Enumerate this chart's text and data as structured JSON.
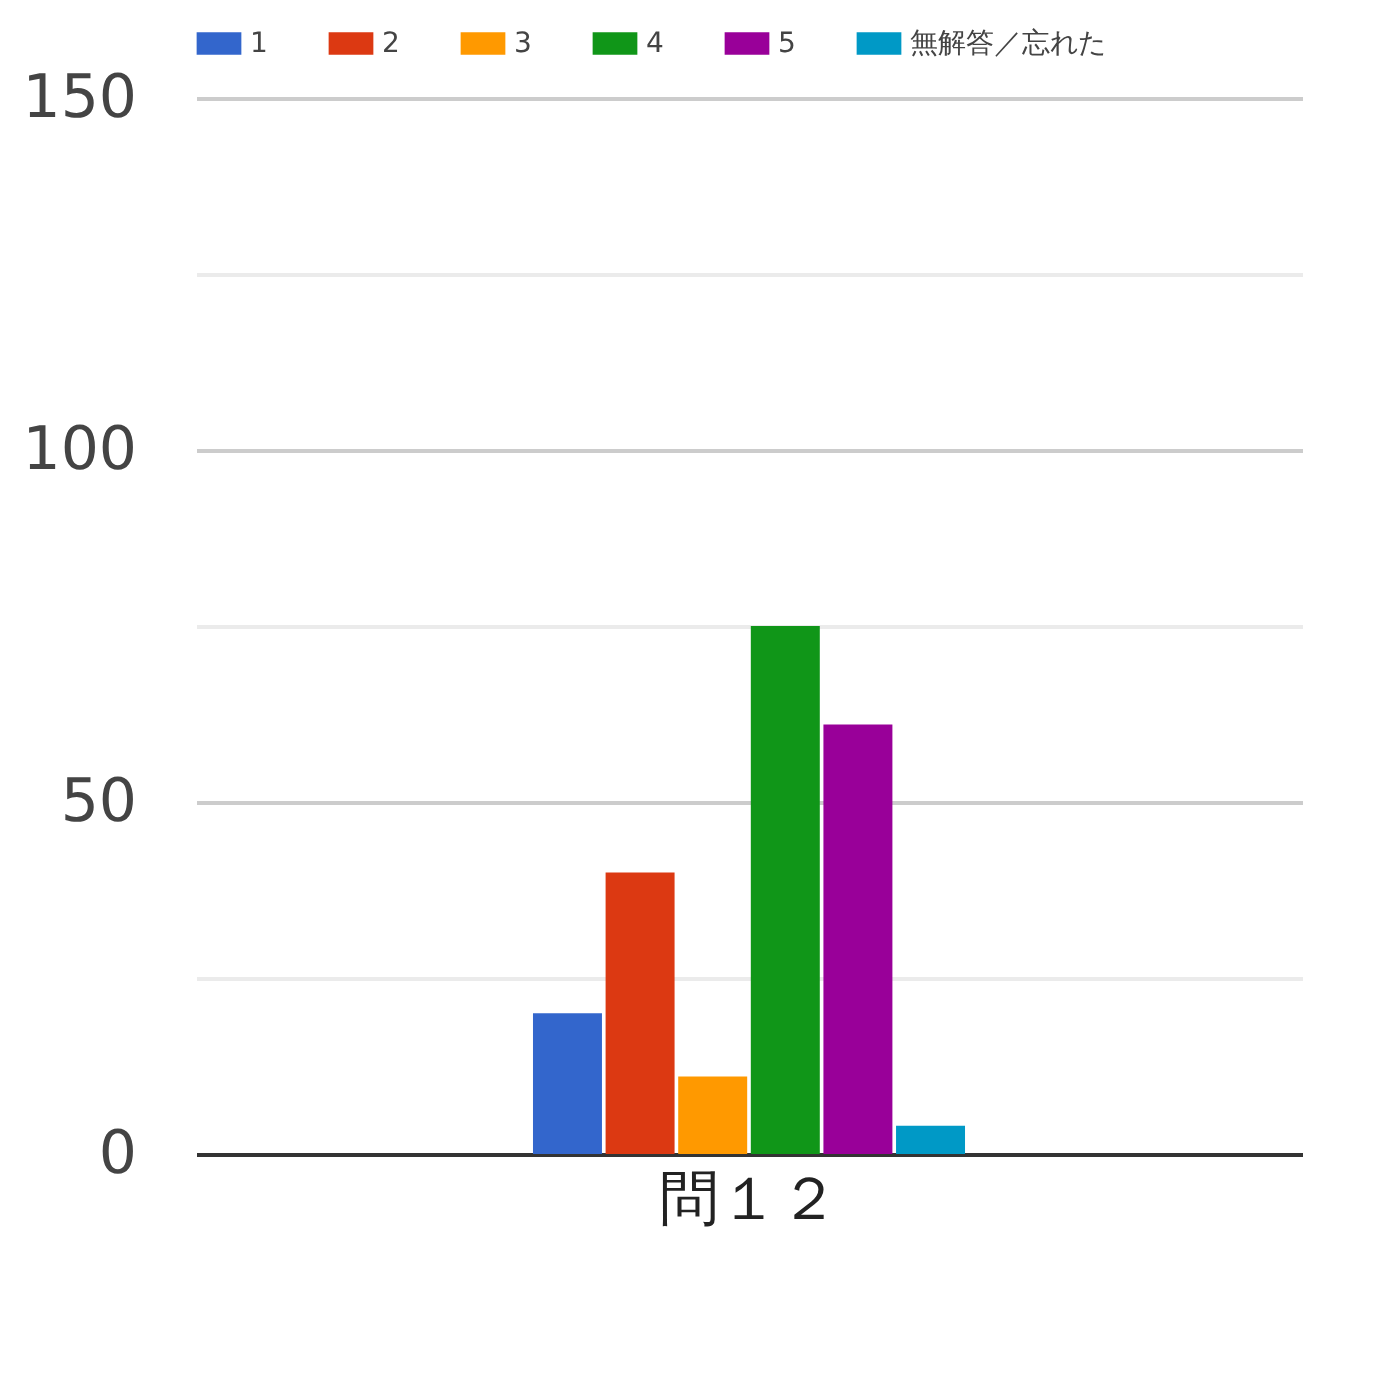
{
  "chart_data": {
    "type": "bar",
    "categories": [
      "問１２"
    ],
    "series": [
      {
        "name": "1",
        "color": "#3366cc",
        "values": [
          20
        ]
      },
      {
        "name": "2",
        "color": "#dc3912",
        "values": [
          40
        ]
      },
      {
        "name": "3",
        "color": "#ff9900",
        "values": [
          11
        ]
      },
      {
        "name": "4",
        "color": "#109618",
        "values": [
          75
        ]
      },
      {
        "name": "5",
        "color": "#990099",
        "values": [
          61
        ]
      },
      {
        "name": "無解答／忘れた",
        "color": "#0099c6",
        "values": [
          4
        ]
      }
    ],
    "ylim": [
      0,
      150
    ],
    "yticks": [
      0,
      {
        "value": 25,
        "label": null
      },
      50,
      {
        "value": 75,
        "label": null
      },
      100,
      {
        "value": 125,
        "label": null
      },
      150
    ],
    "grid": "y",
    "legend": "top"
  }
}
